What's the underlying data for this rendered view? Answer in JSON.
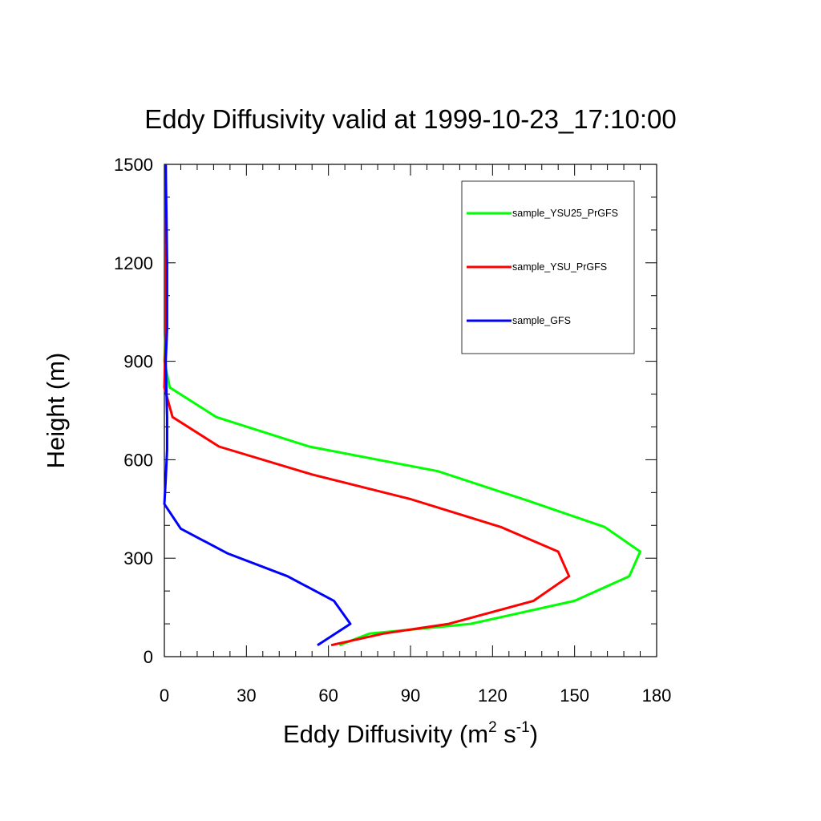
{
  "chart_data": {
    "type": "line",
    "title": "Eddy Diffusivity valid at 1999-10-23_17:10:00",
    "xlabel": "Eddy Diffusivity (m² s⁻¹)",
    "xlabel_parts": {
      "pre": "Eddy Diffusivity (m",
      "sup1": "2",
      "mid": " s",
      "sup2": "-1",
      "post": ")"
    },
    "ylabel": "Height (m)",
    "xlim": [
      0,
      180
    ],
    "ylim": [
      0,
      1500
    ],
    "xticks": [
      0,
      30,
      60,
      90,
      120,
      150,
      180
    ],
    "yticks": [
      0,
      300,
      600,
      900,
      1200,
      1500
    ],
    "grid": false,
    "legend_position": "top-right",
    "series": [
      {
        "name": "sample_YSU25_PrGFS",
        "color": "#00ff00",
        "points": [
          [
            64,
            35
          ],
          [
            75,
            70
          ],
          [
            112,
            100
          ],
          [
            150,
            170
          ],
          [
            170,
            245
          ],
          [
            174,
            320
          ],
          [
            161,
            395
          ],
          [
            133,
            475
          ],
          [
            100,
            565
          ],
          [
            53,
            640
          ],
          [
            19,
            730
          ],
          [
            2,
            820
          ],
          [
            0,
            900
          ],
          [
            0.5,
            1000
          ],
          [
            0.5,
            1200
          ],
          [
            0.5,
            1500
          ]
        ]
      },
      {
        "name": "sample_YSU_PrGFS",
        "color": "#ff0000",
        "points": [
          [
            61,
            35
          ],
          [
            80,
            70
          ],
          [
            104,
            100
          ],
          [
            135,
            170
          ],
          [
            148,
            245
          ],
          [
            144,
            320
          ],
          [
            123,
            395
          ],
          [
            90,
            480
          ],
          [
            54,
            555
          ],
          [
            20,
            640
          ],
          [
            3,
            730
          ],
          [
            0,
            820
          ],
          [
            0.5,
            1000
          ],
          [
            0.5,
            1200
          ],
          [
            0.5,
            1500
          ]
        ]
      },
      {
        "name": "sample_GFS",
        "color": "#0000ff",
        "points": [
          [
            56,
            35
          ],
          [
            68,
            100
          ],
          [
            62,
            170
          ],
          [
            45,
            245
          ],
          [
            23,
            315
          ],
          [
            6,
            390
          ],
          [
            0,
            465
          ],
          [
            0.5,
            540
          ],
          [
            1,
            630
          ],
          [
            1,
            730
          ],
          [
            0.5,
            900
          ],
          [
            1,
            1000
          ],
          [
            1,
            1200
          ],
          [
            0.5,
            1500
          ]
        ]
      }
    ]
  }
}
